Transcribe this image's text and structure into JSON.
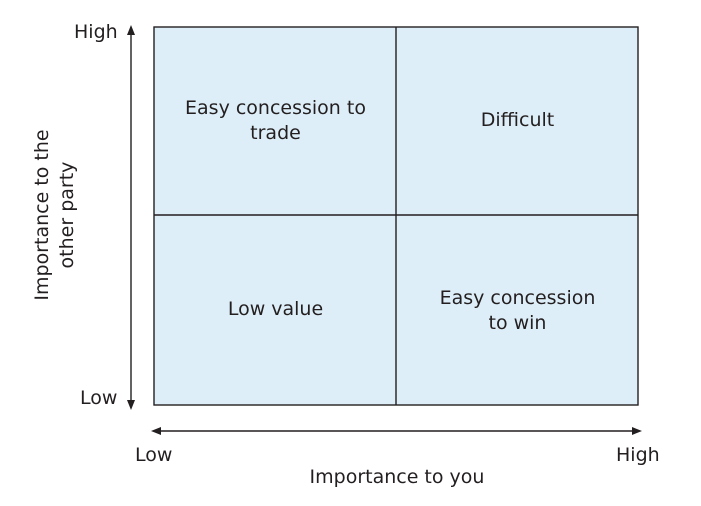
{
  "matrix": {
    "y_axis": {
      "title": "Importance to the other party",
      "high": "High",
      "low": "Low"
    },
    "x_axis": {
      "title": "Importance to you",
      "low": "Low",
      "high": "High"
    },
    "quadrants": {
      "top_left": "Easy concession to trade",
      "top_right": "Difficult",
      "bottom_left": "Low value",
      "bottom_right": "Easy concession to win"
    },
    "colors": {
      "fill": "#deeef8",
      "line": "#231f20"
    }
  }
}
